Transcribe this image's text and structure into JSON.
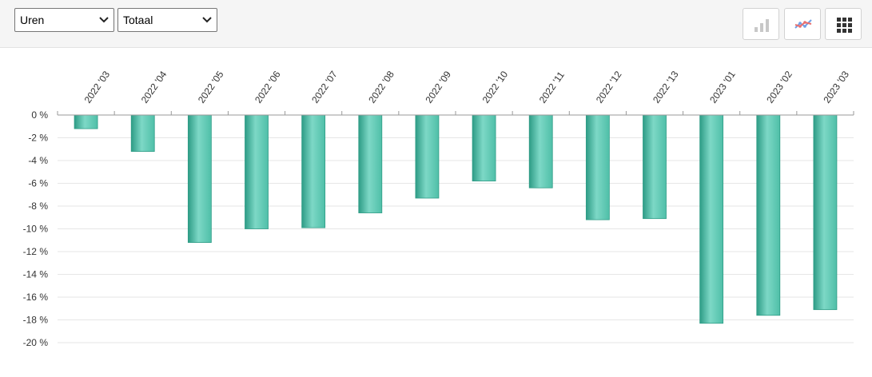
{
  "toolbar": {
    "measure_select": {
      "value": "Uren"
    },
    "aggregate_select": {
      "value": "Totaal"
    },
    "buttons": [
      {
        "icon": "bar-chart-icon",
        "active": false
      },
      {
        "icon": "line-chart-icon",
        "active": false
      },
      {
        "icon": "grid-icon",
        "active": false
      }
    ]
  },
  "colors": {
    "bar_light": "#7dd8c6",
    "bar_mid": "#4fbfa8",
    "bar_dark": "#2e9c86",
    "grid": "#e6e6e6",
    "axis": "#999999",
    "text": "#333333"
  },
  "chart_data": {
    "type": "bar",
    "categories": [
      "2022 '03",
      "2022 '04",
      "2022 '05",
      "2022 '06",
      "2022 '07",
      "2022 '08",
      "2022 '09",
      "2022 '10",
      "2022 '11",
      "2022 '12",
      "2022 '13",
      "2023 '01",
      "2023 '02",
      "2023 '03"
    ],
    "values": [
      -1.2,
      -3.2,
      -11.2,
      -10.0,
      -9.9,
      -8.6,
      -7.3,
      -5.8,
      -6.4,
      -9.2,
      -9.1,
      -18.3,
      -17.6,
      -17.1
    ],
    "ylim": [
      -20,
      0
    ],
    "yticks": [
      0,
      -2,
      -4,
      -6,
      -8,
      -10,
      -12,
      -14,
      -16,
      -18,
      -20
    ],
    "ytick_labels": [
      "0 %",
      "-2 %",
      "-4 %",
      "-6 %",
      "-8 %",
      "-10 %",
      "-12 %",
      "-14 %",
      "-16 %",
      "-18 %",
      "-20 %"
    ],
    "x_axis_position": "top",
    "grid": true,
    "legend": false
  }
}
